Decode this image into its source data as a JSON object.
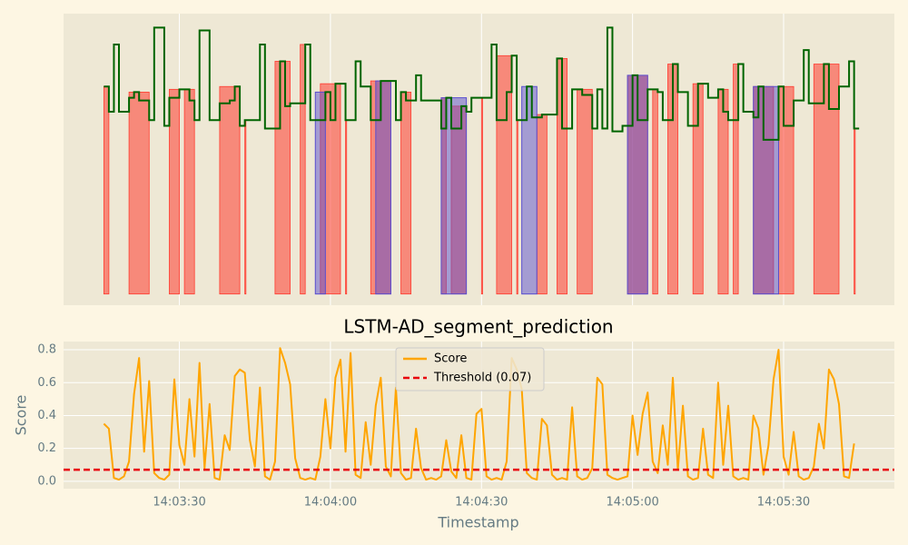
{
  "chart_data": [
    {
      "type": "step",
      "x": [
        "14:03:15",
        "14:03:16",
        "14:03:17",
        "14:03:18",
        "14:03:20",
        "14:03:21",
        "14:03:22",
        "14:03:24",
        "14:03:25",
        "14:03:27",
        "14:03:28",
        "14:03:30",
        "14:03:32",
        "14:03:33",
        "14:03:34",
        "14:03:36",
        "14:03:38",
        "14:03:40",
        "14:03:41",
        "14:03:42",
        "14:03:43",
        "14:03:46",
        "14:03:47",
        "14:03:50",
        "14:03:51",
        "14:03:52",
        "14:03:55",
        "14:03:56",
        "14:03:59",
        "14:04:00",
        "14:04:01",
        "14:04:03",
        "14:04:05",
        "14:04:06",
        "14:04:08",
        "14:04:10",
        "14:04:13",
        "14:04:14",
        "14:04:15",
        "14:04:17",
        "14:04:18",
        "14:04:22",
        "14:04:23",
        "14:04:24",
        "14:04:26",
        "14:04:27",
        "14:04:28",
        "14:04:32",
        "14:04:33",
        "14:04:35",
        "14:04:36",
        "14:04:37",
        "14:04:39",
        "14:04:40",
        "14:04:42",
        "14:04:45",
        "14:04:46",
        "14:04:48",
        "14:04:50",
        "14:04:52",
        "14:04:53",
        "14:04:54",
        "14:04:55",
        "14:04:56",
        "14:04:58",
        "14:05:00",
        "14:05:01",
        "14:05:03",
        "14:05:05",
        "14:05:06",
        "14:05:08",
        "14:05:09",
        "14:05:11",
        "14:05:13",
        "14:05:15",
        "14:05:17",
        "14:05:18",
        "14:05:19",
        "14:05:21",
        "14:05:22",
        "14:05:24",
        "14:05:25",
        "14:05:26",
        "14:05:29",
        "14:05:30",
        "14:05:32",
        "14:05:34",
        "14:05:35",
        "14:05:38",
        "14:05:39",
        "14:05:41",
        "14:05:43",
        "14:05:44",
        "14:05:45"
      ],
      "series": [
        {
          "color": "#006400",
          "values": [
            0.74,
            0.65,
            0.89,
            0.65,
            0.7,
            0.72,
            0.69,
            0.62,
            0.95,
            0.6,
            0.7,
            0.73,
            0.69,
            0.62,
            0.94,
            0.62,
            0.68,
            0.69,
            0.74,
            0.6,
            0.62,
            0.89,
            0.59,
            0.83,
            0.67,
            0.68,
            0.89,
            0.62,
            0.72,
            0.62,
            0.75,
            0.62,
            0.83,
            0.74,
            0.62,
            0.76,
            0.62,
            0.72,
            0.69,
            0.78,
            0.69,
            0.59,
            0.7,
            0.59,
            0.67,
            0.65,
            0.7,
            0.89,
            0.62,
            0.72,
            0.85,
            0.62,
            0.74,
            0.63,
            0.64,
            0.84,
            0.59,
            0.73,
            0.71,
            0.59,
            0.73,
            0.59,
            0.95,
            0.58,
            0.6,
            0.78,
            0.62,
            0.73,
            0.72,
            0.62,
            0.82,
            0.72,
            0.6,
            0.75,
            0.7,
            0.73,
            0.65,
            0.62,
            0.82,
            0.65,
            0.63,
            0.74,
            0.55,
            0.74,
            0.6,
            0.69,
            0.87,
            0.68,
            0.82,
            0.66,
            0.74,
            0.83,
            0.59,
            0.59
          ]
        }
      ],
      "anomaly_spans": [
        [
          "14:03:15",
          "14:03:16"
        ],
        [
          "14:03:20",
          "14:03:24"
        ],
        [
          "14:03:28",
          "14:03:30"
        ],
        [
          "14:03:31",
          "14:03:33"
        ],
        [
          "14:03:38",
          "14:03:42"
        ],
        [
          "14:03:43",
          "14:03:43"
        ],
        [
          "14:03:49",
          "14:03:52"
        ],
        [
          "14:03:54",
          "14:03:55"
        ],
        [
          "14:03:58",
          "14:04:02"
        ],
        [
          "14:04:03",
          "14:04:03"
        ],
        [
          "14:04:08",
          "14:04:12"
        ],
        [
          "14:04:14",
          "14:04:16"
        ],
        [
          "14:04:22",
          "14:04:23"
        ],
        [
          "14:04:24",
          "14:04:27"
        ],
        [
          "14:04:30",
          "14:04:30"
        ],
        [
          "14:04:33",
          "14:04:36"
        ],
        [
          "14:04:37",
          "14:04:37"
        ],
        [
          "14:04:41",
          "14:04:43"
        ],
        [
          "14:04:45",
          "14:04:47"
        ],
        [
          "14:04:49",
          "14:04:52"
        ],
        [
          "14:04:59",
          "14:05:03"
        ],
        [
          "14:05:04",
          "14:05:05"
        ],
        [
          "14:05:07",
          "14:05:09"
        ],
        [
          "14:05:12",
          "14:05:14"
        ],
        [
          "14:05:17",
          "14:05:19"
        ],
        [
          "14:05:20",
          "14:05:21"
        ],
        [
          "14:05:24",
          "14:05:28"
        ],
        [
          "14:05:29",
          "14:05:32"
        ],
        [
          "14:05:36",
          "14:05:41"
        ],
        [
          "14:05:44",
          "14:05:44"
        ]
      ],
      "anomaly_color": "#ff3b2f",
      "segments": [
        [
          "14:03:57",
          "14:03:59"
        ],
        [
          "14:04:09",
          "14:04:12"
        ],
        [
          "14:04:22",
          "14:04:27"
        ],
        [
          "14:04:38",
          "14:04:41"
        ],
        [
          "14:04:59",
          "14:05:03"
        ],
        [
          "14:05:24",
          "14:05:29"
        ]
      ],
      "segment_color": "#5a4fcf",
      "xlim": [
        "14:03:07",
        "14:05:52"
      ],
      "xticks": [
        "14:03:30",
        "14:04:00",
        "14:04:30",
        "14:05:00",
        "14:05:30"
      ],
      "ylim": [
        -0.04,
        1.0
      ],
      "grid": true
    },
    {
      "type": "line",
      "title": "LSTM-AD_segment_prediction",
      "x_label": "Timestamp",
      "y_label": "Score",
      "x": [
        "14:03:15",
        "14:03:16",
        "14:03:17",
        "14:03:18",
        "14:03:19",
        "14:03:20",
        "14:03:21",
        "14:03:22",
        "14:03:23",
        "14:03:24",
        "14:03:25",
        "14:03:26",
        "14:03:27",
        "14:03:28",
        "14:03:29",
        "14:03:30",
        "14:03:31",
        "14:03:32",
        "14:03:33",
        "14:03:34",
        "14:03:35",
        "14:03:36",
        "14:03:37",
        "14:03:38",
        "14:03:39",
        "14:03:40",
        "14:03:41",
        "14:03:42",
        "14:03:43",
        "14:03:44",
        "14:03:45",
        "14:03:46",
        "14:03:47",
        "14:03:48",
        "14:03:49",
        "14:03:50",
        "14:03:51",
        "14:03:52",
        "14:03:53",
        "14:03:54",
        "14:03:55",
        "14:03:56",
        "14:03:57",
        "14:03:58",
        "14:03:59",
        "14:04:00",
        "14:04:01",
        "14:04:02",
        "14:04:03",
        "14:04:04",
        "14:04:05",
        "14:04:06",
        "14:04:07",
        "14:04:08",
        "14:04:09",
        "14:04:10",
        "14:04:11",
        "14:04:12",
        "14:04:13",
        "14:04:14",
        "14:04:15",
        "14:04:16",
        "14:04:17",
        "14:04:18",
        "14:04:19",
        "14:04:20",
        "14:04:21",
        "14:04:22",
        "14:04:23",
        "14:04:24",
        "14:04:25",
        "14:04:26",
        "14:04:27",
        "14:04:28",
        "14:04:29",
        "14:04:30",
        "14:04:31",
        "14:04:32",
        "14:04:33",
        "14:04:34",
        "14:04:35",
        "14:04:36",
        "14:04:37",
        "14:04:38",
        "14:04:39",
        "14:04:40",
        "14:04:41",
        "14:04:42",
        "14:04:43",
        "14:04:44",
        "14:04:45",
        "14:04:46",
        "14:04:47",
        "14:04:48",
        "14:04:49",
        "14:04:50",
        "14:04:51",
        "14:04:52",
        "14:04:53",
        "14:04:54",
        "14:04:55",
        "14:04:56",
        "14:04:57",
        "14:04:58",
        "14:04:59",
        "14:05:00",
        "14:05:01",
        "14:05:02",
        "14:05:03",
        "14:05:04",
        "14:05:05",
        "14:05:06",
        "14:05:07",
        "14:05:08",
        "14:05:09",
        "14:05:10",
        "14:05:11",
        "14:05:12",
        "14:05:13",
        "14:05:14",
        "14:05:15",
        "14:05:16",
        "14:05:17",
        "14:05:18",
        "14:05:19",
        "14:05:20",
        "14:05:21",
        "14:05:22",
        "14:05:23",
        "14:05:24",
        "14:05:25",
        "14:05:26",
        "14:05:27",
        "14:05:28",
        "14:05:29",
        "14:05:30",
        "14:05:31",
        "14:05:32",
        "14:05:33",
        "14:05:34",
        "14:05:35",
        "14:05:36",
        "14:05:37",
        "14:05:38",
        "14:05:39",
        "14:05:40",
        "14:05:41",
        "14:05:42",
        "14:05:43",
        "14:05:44"
      ],
      "series": [
        {
          "name": "Score",
          "color": "#ffa500",
          "values": [
            0.35,
            0.32,
            0.02,
            0.01,
            0.03,
            0.12,
            0.53,
            0.75,
            0.18,
            0.61,
            0.05,
            0.02,
            0.01,
            0.04,
            0.62,
            0.22,
            0.1,
            0.5,
            0.15,
            0.72,
            0.08,
            0.47,
            0.02,
            0.01,
            0.28,
            0.19,
            0.64,
            0.68,
            0.66,
            0.25,
            0.09,
            0.57,
            0.03,
            0.01,
            0.12,
            0.81,
            0.72,
            0.59,
            0.14,
            0.02,
            0.01,
            0.02,
            0.01,
            0.15,
            0.5,
            0.2,
            0.63,
            0.74,
            0.18,
            0.78,
            0.04,
            0.02,
            0.36,
            0.1,
            0.46,
            0.63,
            0.09,
            0.03,
            0.57,
            0.05,
            0.01,
            0.02,
            0.32,
            0.08,
            0.01,
            0.02,
            0.01,
            0.03,
            0.25,
            0.06,
            0.02,
            0.28,
            0.02,
            0.01,
            0.41,
            0.44,
            0.03,
            0.01,
            0.02,
            0.01,
            0.12,
            0.75,
            0.68,
            0.56,
            0.05,
            0.02,
            0.01,
            0.38,
            0.34,
            0.04,
            0.01,
            0.02,
            0.01,
            0.45,
            0.03,
            0.01,
            0.02,
            0.08,
            0.63,
            0.59,
            0.04,
            0.02,
            0.01,
            0.02,
            0.03,
            0.4,
            0.16,
            0.41,
            0.54,
            0.12,
            0.05,
            0.34,
            0.1,
            0.63,
            0.07,
            0.46,
            0.03,
            0.01,
            0.02,
            0.32,
            0.04,
            0.02,
            0.6,
            0.1,
            0.46,
            0.03,
            0.01,
            0.02,
            0.01,
            0.4,
            0.32,
            0.04,
            0.22,
            0.62,
            0.8,
            0.15,
            0.04,
            0.3,
            0.03,
            0.01,
            0.02,
            0.09,
            0.35,
            0.2,
            0.68,
            0.62,
            0.47,
            0.03,
            0.02,
            0.23
          ]
        }
      ],
      "threshold": {
        "name": "Threshold (0.07)",
        "value": 0.07,
        "color": "#e8000b"
      },
      "xlim": [
        "14:03:07",
        "14:05:52"
      ],
      "xticks": [
        "14:03:30",
        "14:04:00",
        "14:04:30",
        "14:05:00",
        "14:05:30"
      ],
      "ylim": [
        -0.045,
        0.85
      ],
      "yticks": [
        {
          "value": 0,
          "label": "0.0"
        },
        0.2,
        0.4,
        0.6,
        0.8
      ],
      "legend": "upper center",
      "grid": true
    }
  ]
}
